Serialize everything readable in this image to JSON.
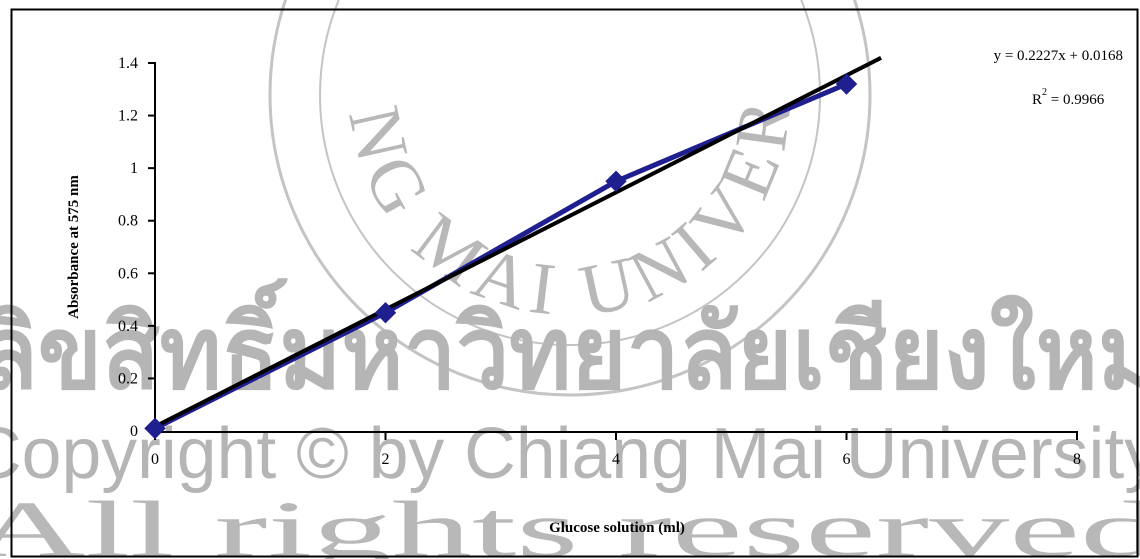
{
  "chart_data": {
    "type": "scatter",
    "title": "",
    "xlabel": "Glucose solution (ml)",
    "ylabel": "Absorbance at 575 nm",
    "xlim": [
      0,
      8
    ],
    "ylim": [
      0,
      1.4
    ],
    "x_ticks": [
      0,
      2,
      4,
      6,
      8
    ],
    "y_ticks": [
      0,
      0.2,
      0.4,
      0.6,
      0.8,
      1,
      1.2,
      1.4
    ],
    "x_tick_labels": [
      "0",
      "2",
      "4",
      "6",
      "8"
    ],
    "y_tick_labels": [
      "0",
      "0.2",
      "0.4",
      "0.6",
      "0.8",
      "1",
      "1.2",
      "1.4"
    ],
    "grid": false,
    "legend": "none",
    "series": [
      {
        "x": [
          0,
          2,
          4,
          6
        ],
        "y": [
          0.01,
          0.45,
          0.95,
          1.32
        ],
        "color": "#1f1f8f",
        "marker": "diamond",
        "connected": true
      }
    ],
    "trendline": {
      "slope": 0.2227,
      "intercept": 0.0168,
      "x_range": [
        0,
        6.3
      ],
      "color": "#000000",
      "equation": "y = 0.2227x + 0.0168",
      "r2_label": "R",
      "r2_superscript": "2",
      "r2_value": " = 0.9966"
    }
  },
  "watermark": {
    "seal_text": "CHIANG MAI UNIVERSITY",
    "thai_text": "ลิขสิทธิ์มหาวิทยาลัยเชียงใหม่",
    "copyright_text": "Copyright © by Chiang Mai University",
    "rights_text": "All rights reserved",
    "color": "#b5b5b5"
  }
}
